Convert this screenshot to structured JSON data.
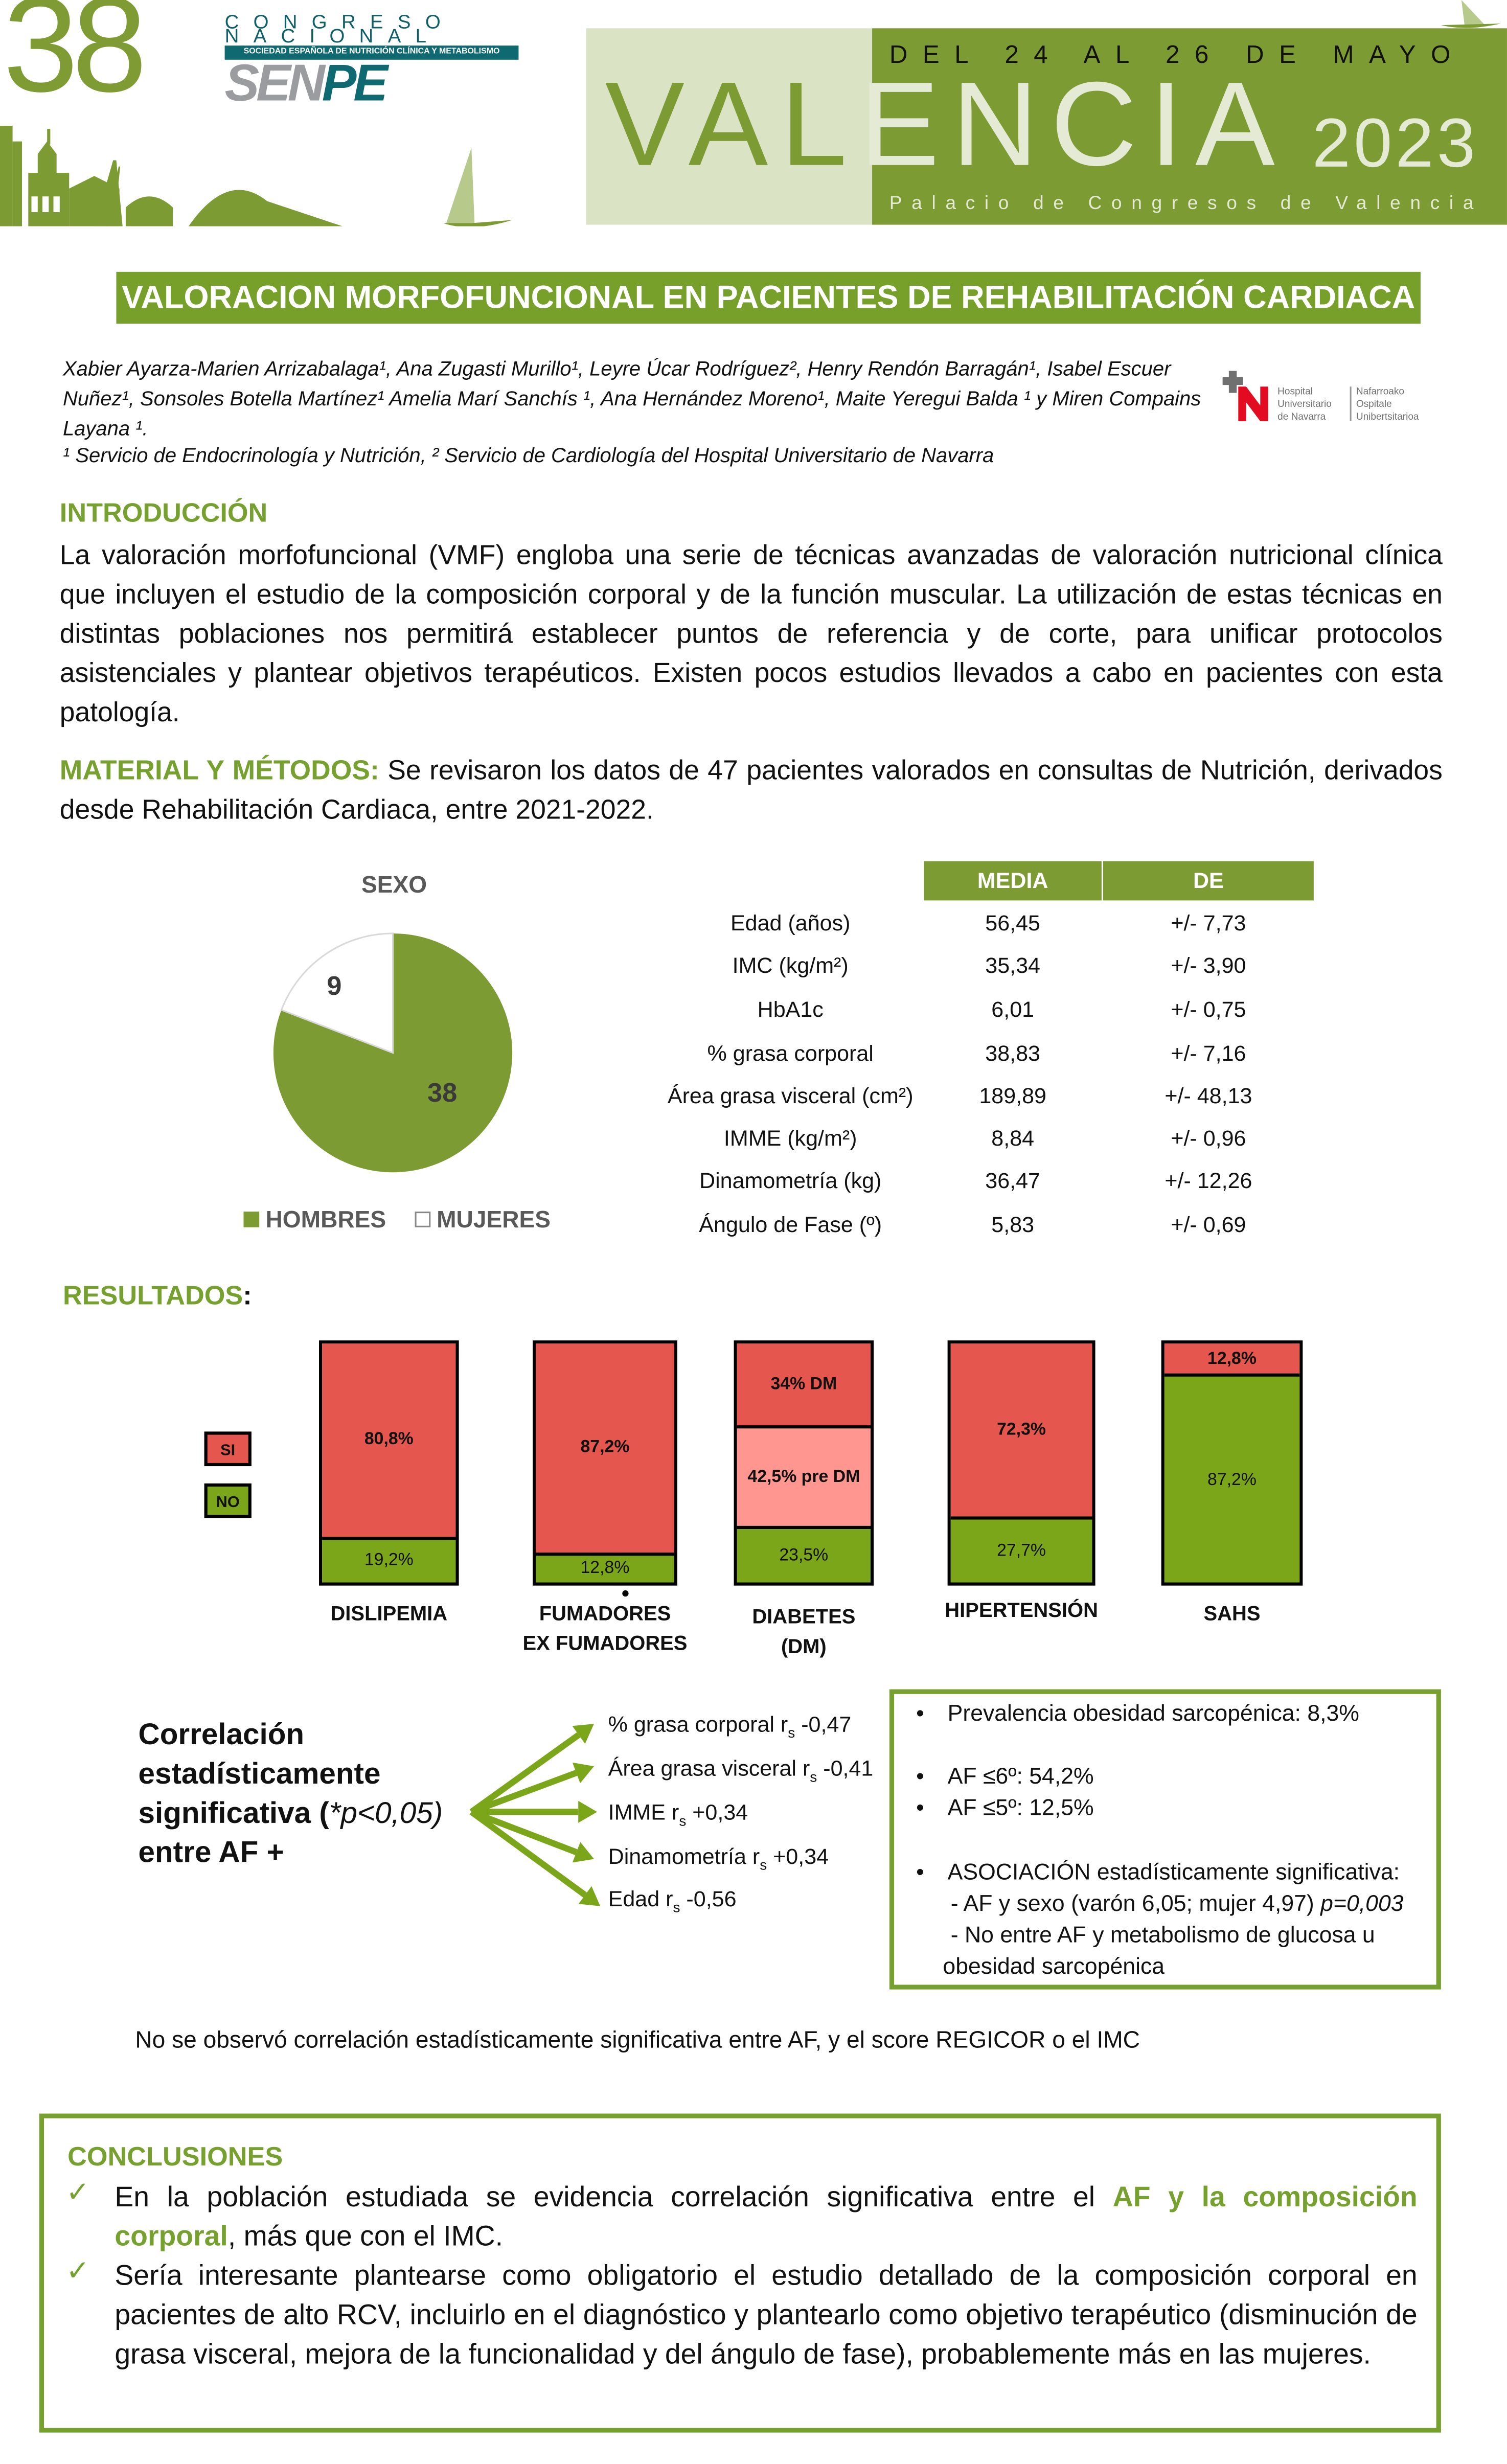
{
  "header": {
    "number": "38",
    "congreso_line1": "CONGRESO",
    "congreso_line2": "NACIONAL",
    "society": "SOCIEDAD ESPAÑOLA DE NUTRICIÓN CLÍNICA Y METABOLISMO",
    "logo_sen": "SEN",
    "logo_pe": "PE",
    "dates": "DEL 24 AL 26 DE MAYO",
    "city_part1": "VAL",
    "city_part2": "ENCIA",
    "year": "2023",
    "venue": "Palacio de Congresos de Valencia",
    "brand_green": "#7d9b33",
    "brand_teal": "#0e6a70"
  },
  "title": "VALORACION MORFOFUNCIONAL EN PACIENTES DE REHABILITACIÓN CARDIACA",
  "authors": "Xabier Ayarza-Marien Arrizabalaga¹, Ana Zugasti Murillo¹, Leyre Úcar Rodríguez², Henry Rendón Barragán¹, Isabel Escuer Nuñez¹, Sonsoles Botella Martínez¹ Amelia Marí Sanchís ¹, Ana Hernández Moreno¹, Maite Yeregui Balda ¹ y Miren Compains Layana ¹.",
  "affiliation": "¹ Servicio de Endocrinología y Nutrición, ² Servicio de Cardiología del Hospital Universitario de Navarra",
  "hospital_logo": {
    "line1": "Hospital",
    "line2": "Universitario",
    "line3": "de Navarra",
    "eu1": "Nafarroako",
    "eu2": "Ospitale",
    "eu3": "Unibertsitarioa"
  },
  "intro": {
    "heading": "INTRODUCCIÓN",
    "text": "La valoración morfofuncional (VMF) engloba una serie de técnicas avanzadas de valoración nutricional clínica que incluyen el estudio de la composición corporal y de la función muscular. La utilización de estas técnicas en distintas poblaciones nos permitirá establecer puntos de referencia y de corte, para unificar protocolos asistenciales y plantear objetivos terapéuticos. Existen pocos estudios llevados a cabo en pacientes con esta patología."
  },
  "methods": {
    "heading": "MATERIAL Y MÉTODOS:",
    "text": " Se revisaron los datos de 47 pacientes valorados en consultas de Nutrición, derivados desde Rehabilitación Cardiaca, entre 2021-2022."
  },
  "stats_table": {
    "headers": [
      "MEDIA",
      "DE"
    ],
    "rows": [
      {
        "label": "Edad (años)",
        "media": "56,45",
        "de": "+/- 7,73"
      },
      {
        "label": "IMC (kg/m²)",
        "media": "35,34",
        "de": "+/- 3,90"
      },
      {
        "label": "HbA1c",
        "media": "6,01",
        "de": "+/- 0,75"
      },
      {
        "label": "% grasa corporal",
        "media": "38,83",
        "de": "+/- 7,16"
      },
      {
        "label": "Área grasa visceral (cm²)",
        "media": "189,89",
        "de": "+/- 48,13"
      },
      {
        "label": "IMME (kg/m²)",
        "media": "8,84",
        "de": "+/- 0,96"
      },
      {
        "label": "Dinamometría (kg)",
        "media": "36,47",
        "de": "+/- 12,26"
      },
      {
        "label": "Ángulo de Fase (º)",
        "media": "5,83",
        "de": "+/- 0,69"
      }
    ]
  },
  "results_heading": "RESULTADOS",
  "results_colon": ":",
  "chart_data": [
    {
      "type": "pie",
      "title": "SEXO",
      "categories": [
        "HOMBRES",
        "MUJERES"
      ],
      "values": [
        38,
        9
      ],
      "labels": [
        "38",
        "9"
      ],
      "colors": [
        "#7d9b33",
        "#ffffff"
      ],
      "legend": "bottom"
    },
    {
      "type": "bar",
      "stacked": true,
      "percent": true,
      "legend": [
        {
          "label": "SI",
          "color": "#e5574e"
        },
        {
          "label": "NO",
          "color": "#7ba61a"
        }
      ],
      "categories": [
        {
          "name": [
            "DISLIPEMIA"
          ],
          "segments": [
            {
              "value": 80.8,
              "label": "80,8%",
              "color": "#e5574e"
            },
            {
              "value": 19.2,
              "label": "19,2%",
              "color": "#7ba61a"
            }
          ]
        },
        {
          "name": [
            "FUMADORES",
            "EX FUMADORES"
          ],
          "segments": [
            {
              "value": 87.2,
              "label": "87,2%",
              "color": "#e5574e"
            },
            {
              "value": 12.8,
              "label": "12,8%",
              "color": "#7ba61a"
            }
          ]
        },
        {
          "name": [
            "DIABETES",
            "(DM)"
          ],
          "segments": [
            {
              "value": 34,
              "label": "34% DM",
              "color": "#e5574e"
            },
            {
              "value": 42.5,
              "label": "42,5% pre DM",
              "color": "#ff9690"
            },
            {
              "value": 23.5,
              "label": "23,5%",
              "color": "#7ba61a"
            }
          ]
        },
        {
          "name": [
            "HIPERTENSIÓN"
          ],
          "segments": [
            {
              "value": 72.3,
              "label": "72,3%",
              "color": "#e5574e"
            },
            {
              "value": 27.7,
              "label": "27,7%",
              "color": "#7ba61a"
            }
          ]
        },
        {
          "name": [
            "SAHS"
          ],
          "segments": [
            {
              "value": 12.8,
              "label": "12,8%",
              "color": "#e5574e"
            },
            {
              "value": 87.2,
              "label": "87,2%",
              "color": "#7ba61a"
            }
          ]
        }
      ]
    }
  ],
  "correlation": {
    "heading_lines": [
      "Correlación",
      "estadísticamente",
      "significativa (",
      "entre AF +"
    ],
    "p_value": "*p<0,05)",
    "r_symbol": "r",
    "r_sub": "s",
    "items": [
      {
        "label": "% grasa corporal",
        "value": "-0,47"
      },
      {
        "label": "Área grasa visceral",
        "value": "-0,41"
      },
      {
        "label": "IMME",
        "value": "+0,34"
      },
      {
        "label": "Dinamometría",
        "value": "+0,34"
      },
      {
        "label": "Edad",
        "value": "-0,56"
      }
    ]
  },
  "findings": {
    "bullet1": "Prevalencia obesidad sarcopénica: 8,3%",
    "bullet2": "AF ≤6º: 54,2%",
    "bullet3": "AF ≤5º: 12,5%",
    "bullet4": "ASOCIACIÓN estadísticamente significativa:",
    "sub1": "- AF y sexo (varón 6,05; mujer 4,97) ",
    "sub1_p": "p=0,003",
    "sub2": "- No entre AF y metabolismo de glucosa u",
    "sub2b": "obesidad sarcopénica"
  },
  "no_correlation": "No se observó correlación estadísticamente significativa entre AF, y el score REGICOR o el IMC",
  "conclusions": {
    "heading": "CONCLUSIONES",
    "item1_pre": "En la población estudiada se evidencia correlación significativa entre el ",
    "item1_highlight": "AF y la composición corporal",
    "item1_post": ", más que con el IMC.",
    "item2": "Sería interesante plantearse como obligatorio el estudio detallado de la composición corporal en pacientes de alto RCV, incluirlo en el diagnóstico y plantearlo como objetivo terapéutico (disminución de grasa visceral, mejora de la funcionalidad y del ángulo de fase), probablemente más en las mujeres."
  }
}
